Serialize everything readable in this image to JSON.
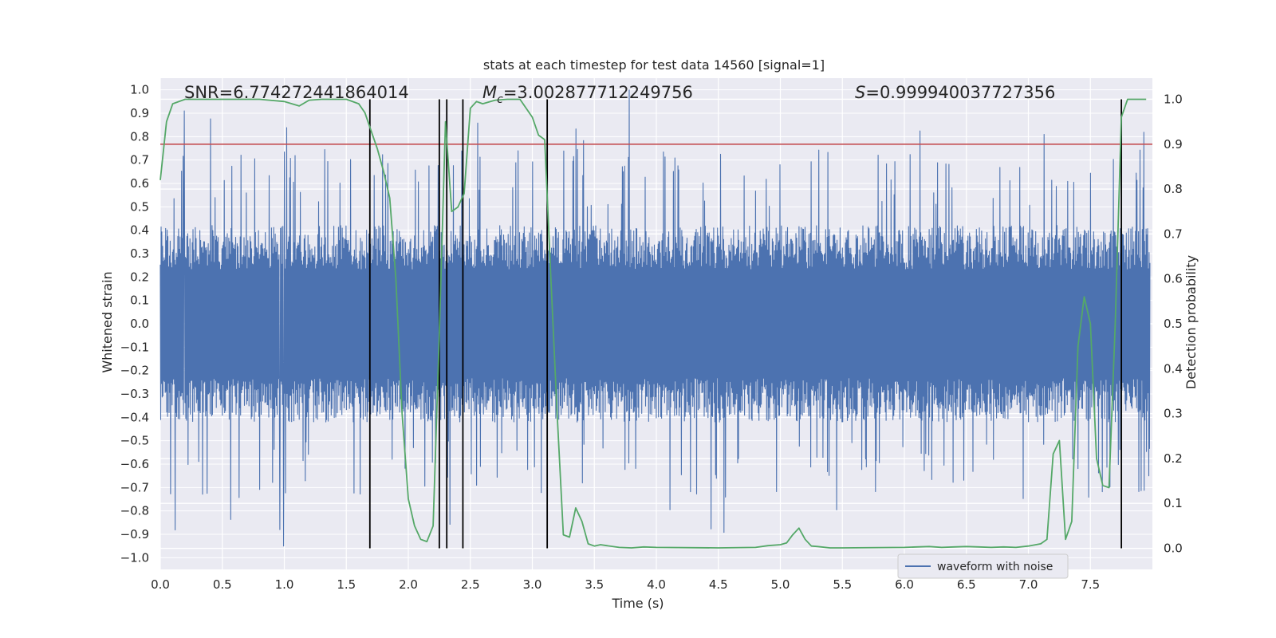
{
  "chart_data": {
    "type": "line",
    "title": "stats at each timestep for test data 14560 [signal=1]",
    "xlabel": "Time (s)",
    "ylabel_left": "Whitened strain",
    "ylabel_right": "Detection probability",
    "xlim": [
      0.0,
      8.0
    ],
    "ylim_left": [
      -1.05,
      1.05
    ],
    "ylim_right": [
      -0.047,
      1.047
    ],
    "xticks": [
      "0.0",
      "0.5",
      "1.0",
      "1.5",
      "2.0",
      "2.5",
      "3.0",
      "3.5",
      "4.0",
      "4.5",
      "5.0",
      "5.5",
      "6.0",
      "6.5",
      "7.0",
      "7.5"
    ],
    "yticks_left": [
      "1.0",
      "0.9",
      "0.8",
      "0.7",
      "0.6",
      "0.5",
      "0.4",
      "0.3",
      "0.2",
      "0.1",
      "0.0",
      "-0.1",
      "-0.2",
      "-0.3",
      "-0.4",
      "-0.5",
      "-0.6",
      "-0.7",
      "-0.8",
      "-0.9",
      "-1.0"
    ],
    "yticks_right": [
      "1.0",
      "0.9",
      "0.8",
      "0.7",
      "0.6",
      "0.5",
      "0.4",
      "0.3",
      "0.2",
      "0.1",
      "0.0"
    ],
    "grid": true,
    "legend_position": "lower-right",
    "annotations": {
      "snr": "SNR=6.774272441864014",
      "mc_symbol": "M",
      "mc_sub": "c",
      "mc_value": "=3.002877712249756",
      "s_symbol": "S",
      "s_value": "=0.999940037727356"
    },
    "series": [
      {
        "name": "waveform with noise",
        "color": "#4c72b0",
        "axis": "left",
        "noise": {
          "t_start": 0.0,
          "t_end": 7.98,
          "envelope_pos": 0.42,
          "envelope_neg": -0.42,
          "peak_max": 1.0,
          "peak_min": -0.95
        }
      },
      {
        "name": "detection probability",
        "color": "#55a868",
        "axis": "right",
        "x": [
          0.0,
          0.05,
          0.1,
          0.2,
          0.4,
          0.6,
          0.8,
          1.0,
          1.12,
          1.2,
          1.3,
          1.5,
          1.6,
          1.65,
          1.7,
          1.75,
          1.8,
          1.85,
          1.9,
          1.95,
          2.0,
          2.05,
          2.1,
          2.15,
          2.2,
          2.25,
          2.3,
          2.35,
          2.4,
          2.45,
          2.5,
          2.55,
          2.6,
          2.7,
          2.8,
          2.9,
          3.0,
          3.05,
          3.1,
          3.15,
          3.2,
          3.25,
          3.3,
          3.35,
          3.4,
          3.45,
          3.5,
          3.55,
          3.6,
          3.7,
          3.8,
          3.9,
          4.0,
          4.5,
          4.8,
          4.9,
          5.0,
          5.05,
          5.1,
          5.15,
          5.2,
          5.25,
          5.3,
          5.4,
          5.5,
          6.0,
          6.1,
          6.2,
          6.3,
          6.4,
          6.5,
          6.6,
          6.7,
          6.8,
          6.9,
          7.0,
          7.1,
          7.15,
          7.2,
          7.25,
          7.3,
          7.35,
          7.4,
          7.45,
          7.5,
          7.55,
          7.6,
          7.65,
          7.7,
          7.75,
          7.8,
          7.85,
          7.9,
          7.95
        ],
        "y": [
          0.82,
          0.95,
          0.99,
          1.0,
          1.0,
          1.0,
          1.0,
          0.995,
          0.985,
          0.998,
          1.0,
          1.0,
          0.99,
          0.97,
          0.93,
          0.89,
          0.84,
          0.78,
          0.6,
          0.3,
          0.11,
          0.05,
          0.02,
          0.015,
          0.05,
          0.48,
          0.95,
          0.75,
          0.76,
          0.79,
          0.98,
          0.995,
          0.99,
          0.998,
          1.0,
          1.0,
          0.96,
          0.92,
          0.91,
          0.6,
          0.3,
          0.03,
          0.025,
          0.09,
          0.06,
          0.01,
          0.005,
          0.008,
          0.006,
          0.002,
          0.001,
          0.003,
          0.002,
          0.001,
          0.002,
          0.006,
          0.008,
          0.012,
          0.03,
          0.045,
          0.02,
          0.005,
          0.004,
          0.001,
          0.001,
          0.002,
          0.003,
          0.004,
          0.002,
          0.003,
          0.004,
          0.003,
          0.002,
          0.003,
          0.002,
          0.005,
          0.01,
          0.02,
          0.21,
          0.24,
          0.02,
          0.06,
          0.45,
          0.56,
          0.5,
          0.2,
          0.14,
          0.135,
          0.5,
          0.96,
          1.0,
          1.0,
          1.0,
          1.0
        ]
      }
    ],
    "threshold_line": {
      "y_right": 0.9,
      "color": "#c44e52"
    },
    "event_lines_x": [
      1.69,
      2.25,
      2.31,
      2.44,
      3.12,
      7.75
    ]
  }
}
